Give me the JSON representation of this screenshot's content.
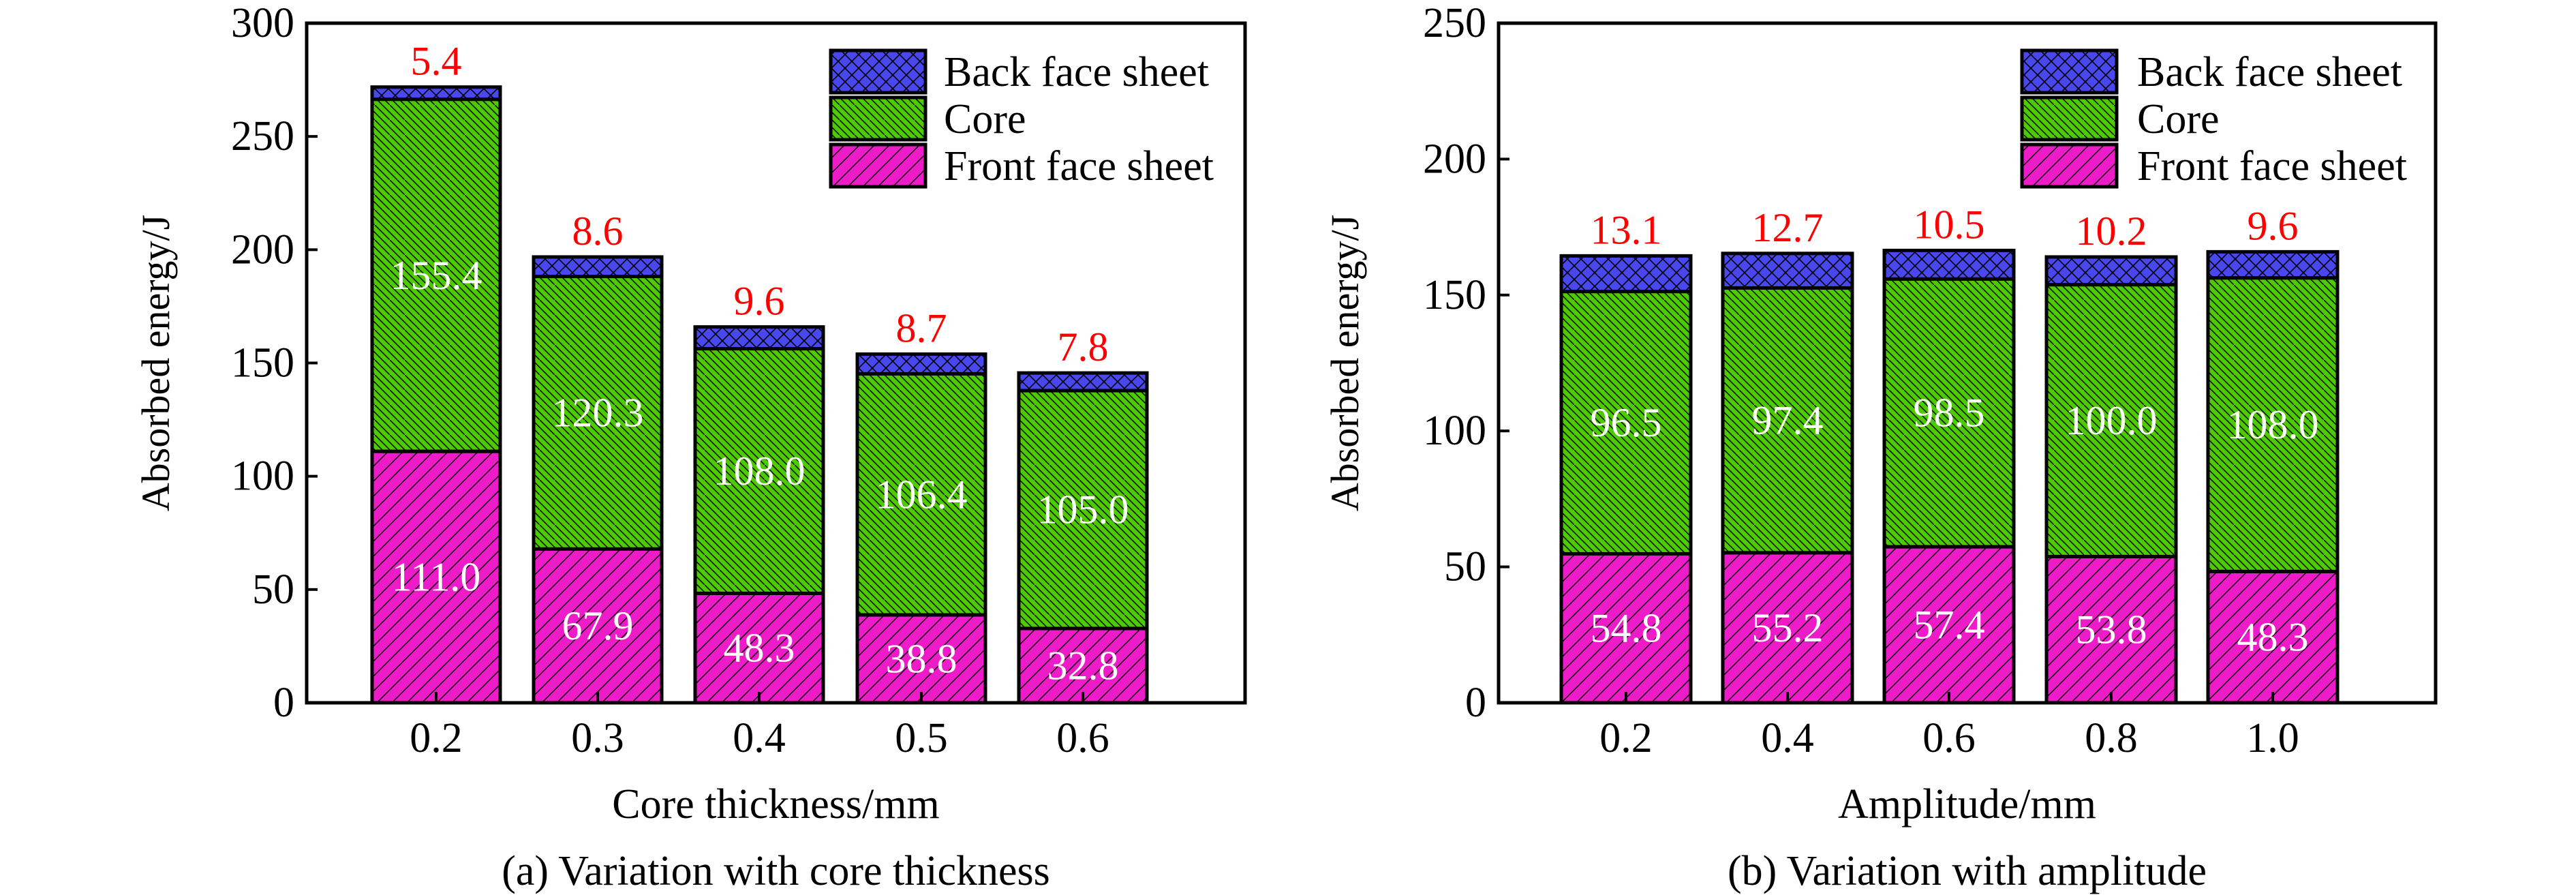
{
  "colors": {
    "front": "#ee1bc8",
    "core": "#4ccc00",
    "back": "#4848ee",
    "top_label": "#ff0000",
    "inner_label": "#ffffff"
  },
  "chart_data": [
    {
      "type": "bar",
      "stacked": true,
      "caption": "(a) Variation with core thickness",
      "xlabel": "Core thickness/mm",
      "ylabel": "Absorbed energy/J",
      "ylim": [
        0,
        300
      ],
      "yticks": [
        "0",
        "50",
        "100",
        "150",
        "200",
        "250",
        "300"
      ],
      "categories": [
        "0.2",
        "0.3",
        "0.4",
        "0.5",
        "0.6"
      ],
      "legend_position": "top-right",
      "series": [
        {
          "name": "Front face sheet",
          "key": "front",
          "values": [
            111.0,
            67.9,
            48.3,
            38.8,
            32.8
          ],
          "labels": [
            "111.0",
            "67.9",
            "48.3",
            "38.8",
            "32.8"
          ]
        },
        {
          "name": "Core",
          "key": "core",
          "values": [
            155.4,
            120.3,
            108.0,
            106.4,
            105.0
          ],
          "labels": [
            "155.4",
            "120.3",
            "108.0",
            "106.4",
            "105.0"
          ]
        },
        {
          "name": "Back face sheet",
          "key": "back",
          "values": [
            5.4,
            8.6,
            9.6,
            8.7,
            7.8
          ],
          "labels": [
            "5.4",
            "8.6",
            "9.6",
            "8.7",
            "7.8"
          ]
        }
      ]
    },
    {
      "type": "bar",
      "stacked": true,
      "caption": "(b) Variation with amplitude",
      "xlabel": "Amplitude/mm",
      "ylabel": "Absorbed energy/J",
      "ylim": [
        0,
        250
      ],
      "yticks": [
        "0",
        "50",
        "100",
        "150",
        "200",
        "250"
      ],
      "categories": [
        "0.2",
        "0.4",
        "0.6",
        "0.8",
        "1.0"
      ],
      "legend_position": "top-right",
      "series": [
        {
          "name": "Front face sheet",
          "key": "front",
          "values": [
            54.8,
            55.2,
            57.4,
            53.8,
            48.3
          ],
          "labels": [
            "54.8",
            "55.2",
            "57.4",
            "53.8",
            "48.3"
          ]
        },
        {
          "name": "Core",
          "key": "core",
          "values": [
            96.5,
            97.4,
            98.5,
            100.0,
            108.0
          ],
          "labels": [
            "96.5",
            "97.4",
            "98.5",
            "100.0",
            "108.0"
          ]
        },
        {
          "name": "Back face sheet",
          "key": "back",
          "values": [
            13.1,
            12.7,
            10.5,
            10.2,
            9.6
          ],
          "labels": [
            "13.1",
            "12.7",
            "10.5",
            "10.2",
            "9.6"
          ]
        }
      ]
    }
  ]
}
